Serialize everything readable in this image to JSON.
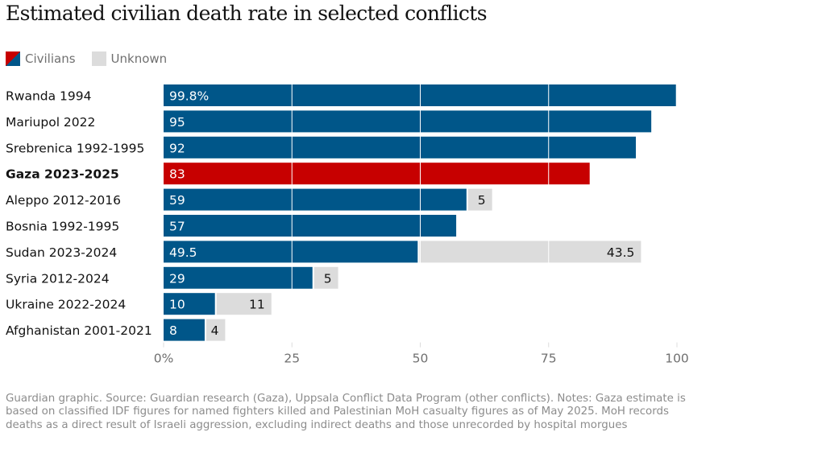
{
  "title": "Estimated civilian death rate in selected conflicts",
  "legend": {
    "civilians": "Civilians",
    "unknown": "Unknown"
  },
  "colors": {
    "civilians": "#005689",
    "highlight": "#c70000",
    "unknown": "#dcdcdc",
    "gridline": "#ffffff",
    "axis_text": "#707070"
  },
  "chart_data": {
    "type": "bar",
    "orientation": "horizontal",
    "stacked": true,
    "categories": [
      "Rwanda 1994",
      "Mariupol 2022",
      "Srebrenica 1992-1995",
      "Gaza 2023-2025",
      "Aleppo 2012-2016",
      "Bosnia 1992-1995",
      "Sudan 2023-2024",
      "Syria 2012-2024",
      "Ukraine 2022-2024",
      "Afghanistan 2001-2021"
    ],
    "highlight_category": "Gaza 2023-2025",
    "series": [
      {
        "name": "Civilians",
        "values": [
          99.8,
          95,
          92,
          83,
          59,
          57,
          49.5,
          29,
          10,
          8
        ],
        "labels": [
          "99.8%",
          "95",
          "92",
          "83",
          "59",
          "57",
          "49.5",
          "29",
          "10",
          "8"
        ]
      },
      {
        "name": "Unknown",
        "values": [
          0,
          0,
          0,
          0,
          5,
          0,
          43.5,
          5,
          11,
          4
        ],
        "labels": [
          "",
          "",
          "",
          "",
          "5",
          "",
          "43.5",
          "5",
          "11",
          "4"
        ]
      }
    ],
    "xlim": [
      0,
      100
    ],
    "xticks": [
      0,
      25,
      50,
      75,
      100
    ],
    "xtick_labels": [
      "0%",
      "25",
      "50",
      "75",
      "100"
    ],
    "grid": true
  },
  "source": "Guardian graphic. Source: Guardian research (Gaza), Uppsala Conflict Data Program (other conflicts). Notes: Gaza estimate is based on classified IDF figures for named fighters killed and Palestinian MoH casualty figures as of May 2025. MoH records deaths as a direct result of Israeli aggression, excluding indirect deaths and those unrecorded by hospital morgues"
}
